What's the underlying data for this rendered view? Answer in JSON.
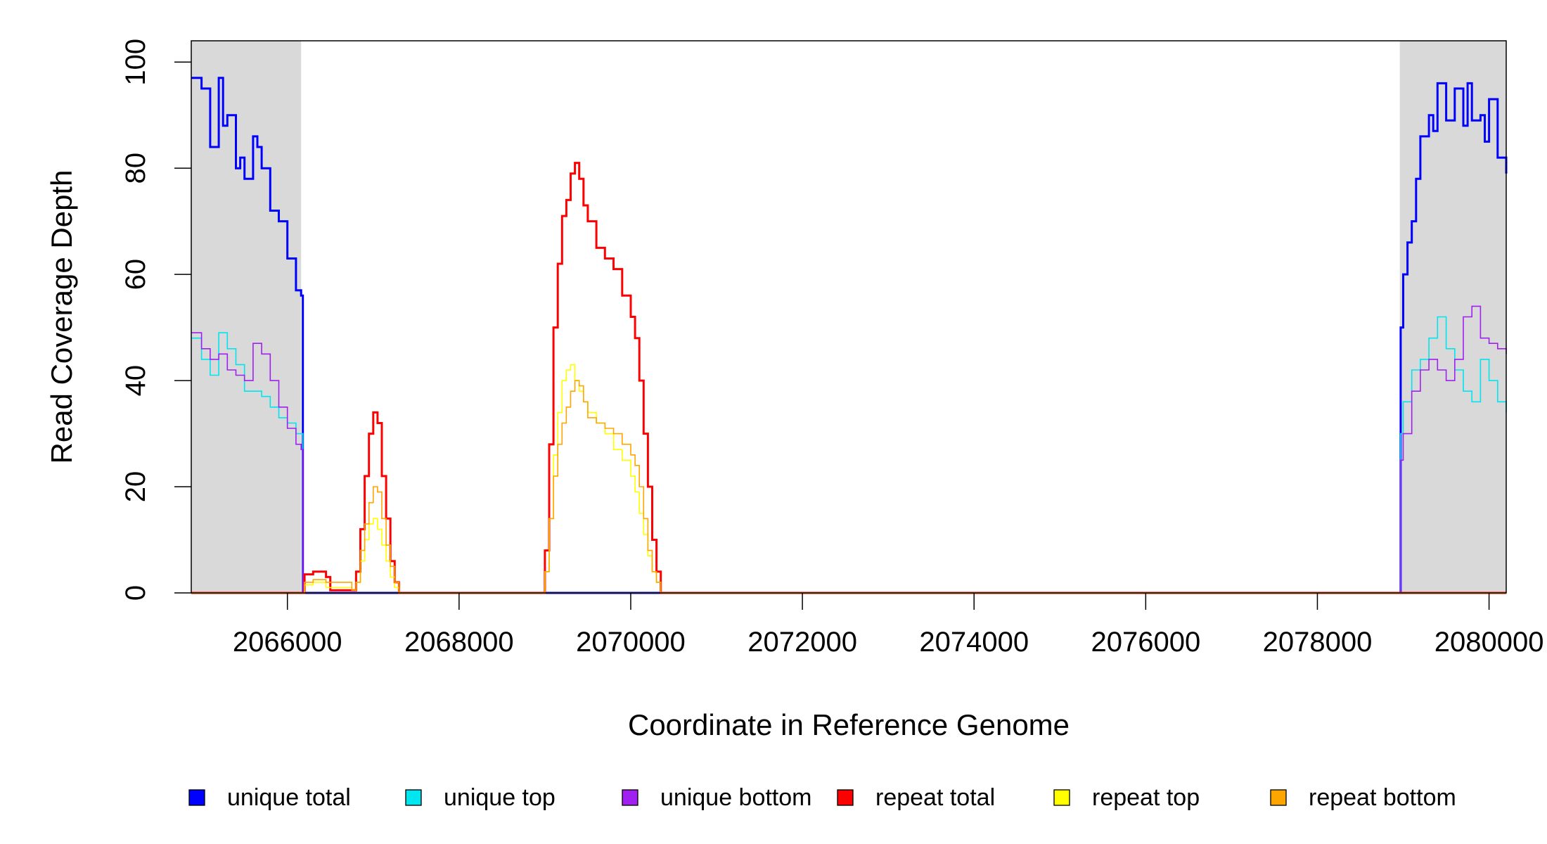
{
  "chart_data": {
    "type": "line",
    "title": "",
    "xlabel": "Coordinate in Reference Genome",
    "ylabel": "Read Coverage Depth",
    "xlim": [
      2064880,
      2080200
    ],
    "ylim": [
      0,
      104
    ],
    "x_ticks": [
      2066000,
      2068000,
      2070000,
      2072000,
      2074000,
      2076000,
      2078000,
      2080000
    ],
    "x_tick_labels": [
      "2066000",
      "2068000",
      "2070000",
      "2072000",
      "2074000",
      "2076000",
      "2078000",
      "2080000"
    ],
    "y_ticks": [
      0,
      20,
      40,
      60,
      80,
      100
    ],
    "y_tick_labels": [
      "0",
      "20",
      "40",
      "60",
      "80",
      "100"
    ],
    "grid": false,
    "legend_position": "bottom",
    "shaded_regions": [
      {
        "x0": 2064880,
        "x1": 2066160,
        "color": "#d9d9d9"
      },
      {
        "x0": 2078960,
        "x1": 2080200,
        "color": "#d9d9d9"
      }
    ],
    "series": [
      {
        "name": "unique total",
        "color": "#0000ff",
        "width": 3,
        "x": [
          2064880,
          2065000,
          2065100,
          2065200,
          2065250,
          2065300,
          2065400,
          2065450,
          2065500,
          2065600,
          2065650,
          2065700,
          2065800,
          2065900,
          2066000,
          2066100,
          2066160,
          2066180,
          2078950,
          2078970,
          2079000,
          2079050,
          2079100,
          2079150,
          2079200,
          2079300,
          2079350,
          2079400,
          2079500,
          2079600,
          2079700,
          2079750,
          2079800,
          2079900,
          2079950,
          2080000,
          2080100,
          2080200
        ],
        "y": [
          97,
          95,
          84,
          97,
          88,
          90,
          80,
          82,
          78,
          86,
          84,
          80,
          72,
          70,
          63,
          57,
          56,
          0,
          0,
          50,
          60,
          66,
          70,
          78,
          86,
          90,
          87,
          96,
          89,
          95,
          88,
          96,
          89,
          90,
          85,
          93,
          82,
          79
        ]
      },
      {
        "name": "unique top",
        "color": "#00e5ee",
        "width": 1.6,
        "x": [
          2064880,
          2065000,
          2065100,
          2065200,
          2065300,
          2065400,
          2065500,
          2065600,
          2065700,
          2065800,
          2065900,
          2066000,
          2066100,
          2066160,
          2066180,
          2078950,
          2078970,
          2079000,
          2079100,
          2079200,
          2079300,
          2079400,
          2079500,
          2079600,
          2079700,
          2079800,
          2079900,
          2080000,
          2080100,
          2080200
        ],
        "y": [
          48,
          44,
          41,
          49,
          46,
          43,
          38,
          38,
          37,
          35,
          33,
          32,
          30,
          30,
          0,
          0,
          30,
          36,
          42,
          44,
          48,
          52,
          46,
          42,
          38,
          36,
          44,
          40,
          36,
          34
        ]
      },
      {
        "name": "unique bottom",
        "color": "#a020f0",
        "width": 1.6,
        "x": [
          2064880,
          2065000,
          2065100,
          2065200,
          2065300,
          2065400,
          2065500,
          2065600,
          2065700,
          2065800,
          2065900,
          2066000,
          2066100,
          2066160,
          2066180,
          2078950,
          2078970,
          2079000,
          2079100,
          2079200,
          2079300,
          2079400,
          2079500,
          2079600,
          2079700,
          2079800,
          2079900,
          2080000,
          2080100,
          2080200
        ],
        "y": [
          49,
          46,
          44,
          45,
          42,
          41,
          40,
          47,
          45,
          40,
          35,
          31,
          28,
          27,
          0,
          0,
          25,
          30,
          38,
          42,
          44,
          42,
          40,
          44,
          52,
          54,
          48,
          47,
          46,
          45
        ]
      },
      {
        "name": "repeat total",
        "color": "#ff0000",
        "width": 3,
        "x": [
          2064880,
          2066160,
          2066200,
          2066300,
          2066400,
          2066450,
          2066500,
          2066750,
          2066800,
          2066850,
          2066900,
          2066950,
          2067000,
          2067050,
          2067100,
          2067150,
          2067200,
          2067250,
          2067300,
          2068950,
          2069000,
          2069050,
          2069100,
          2069150,
          2069200,
          2069250,
          2069300,
          2069350,
          2069400,
          2069450,
          2069500,
          2069600,
          2069700,
          2069800,
          2069900,
          2070000,
          2070050,
          2070100,
          2070150,
          2070200,
          2070250,
          2070300,
          2070350,
          2080200
        ],
        "y": [
          0,
          0,
          3.5,
          4,
          4,
          3,
          0.5,
          0.5,
          4,
          12,
          22,
          30,
          34,
          32,
          22,
          14,
          6,
          2,
          0,
          0,
          8,
          28,
          50,
          62,
          71,
          74,
          79,
          81,
          78,
          73,
          70,
          65,
          63,
          61,
          56,
          52,
          48,
          40,
          30,
          20,
          10,
          4,
          0,
          0
        ]
      },
      {
        "name": "repeat top",
        "color": "#ffff00",
        "width": 1.6,
        "x": [
          2064880,
          2066160,
          2066200,
          2066300,
          2066450,
          2066750,
          2066800,
          2066850,
          2066900,
          2066950,
          2067000,
          2067050,
          2067100,
          2067150,
          2067200,
          2067250,
          2067300,
          2068950,
          2069000,
          2069050,
          2069100,
          2069150,
          2069200,
          2069250,
          2069300,
          2069350,
          2069400,
          2069450,
          2069500,
          2069600,
          2069700,
          2069800,
          2069900,
          2070000,
          2070050,
          2070100,
          2070150,
          2070200,
          2070250,
          2070300,
          2070350,
          2080200
        ],
        "y": [
          0,
          0,
          1.5,
          2,
          1,
          0.5,
          2,
          6,
          10,
          13,
          14,
          12,
          9,
          6,
          3,
          1,
          0,
          0,
          4,
          14,
          26,
          34,
          40,
          42,
          43,
          40,
          38,
          36,
          34,
          32,
          30,
          27,
          25,
          22,
          19,
          15,
          11,
          7,
          4,
          2,
          0,
          0
        ]
      },
      {
        "name": "repeat bottom",
        "color": "#ffa500",
        "width": 1.6,
        "x": [
          2064880,
          2066160,
          2066200,
          2066300,
          2066450,
          2066750,
          2066800,
          2066850,
          2066900,
          2066950,
          2067000,
          2067050,
          2067100,
          2067150,
          2067200,
          2067250,
          2067300,
          2068950,
          2069000,
          2069050,
          2069100,
          2069150,
          2069200,
          2069250,
          2069300,
          2069350,
          2069400,
          2069450,
          2069500,
          2069600,
          2069700,
          2069800,
          2069900,
          2070000,
          2070050,
          2070100,
          2070150,
          2070200,
          2070250,
          2070300,
          2070350,
          2080200
        ],
        "y": [
          0,
          0,
          2,
          2.5,
          2,
          0.5,
          2,
          8,
          13,
          17,
          20,
          19,
          14,
          9,
          5,
          2,
          0,
          0,
          4,
          14,
          22,
          28,
          32,
          35,
          38,
          40,
          39,
          36,
          33,
          32,
          31,
          30,
          28,
          26,
          24,
          20,
          14,
          8,
          4,
          2,
          0,
          0
        ]
      }
    ]
  }
}
